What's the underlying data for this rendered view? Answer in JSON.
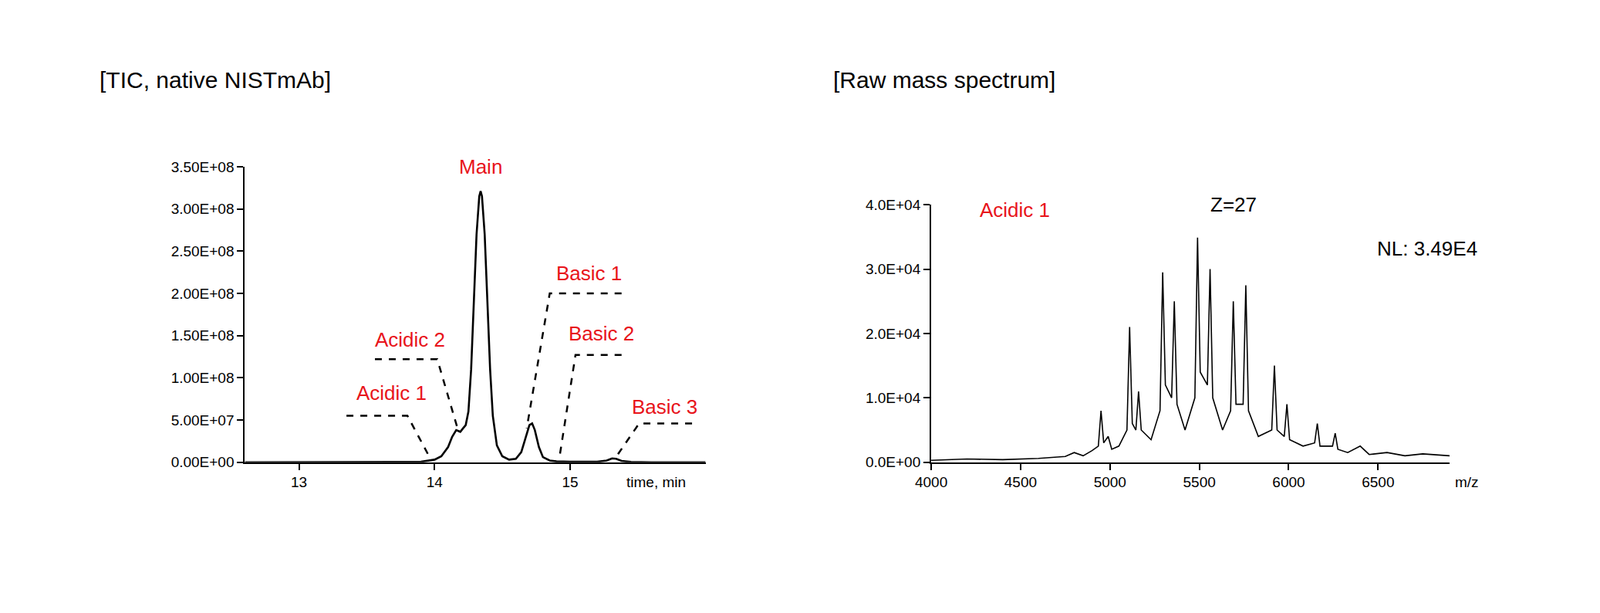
{
  "chart_data": [
    {
      "type": "line",
      "title": "[TIC, native NISTmAb]",
      "xlabel": "time, min",
      "x": [
        12.6,
        13.0,
        13.5,
        13.8,
        13.9,
        14.0,
        14.05,
        14.1,
        14.13,
        14.16,
        14.19,
        14.21,
        14.23,
        14.25,
        14.27,
        14.29,
        14.31,
        14.33,
        14.34,
        14.35,
        14.37,
        14.39,
        14.41,
        14.43,
        14.46,
        14.5,
        14.55,
        14.6,
        14.64,
        14.67,
        14.7,
        14.72,
        14.74,
        14.77,
        14.8,
        14.85,
        14.9,
        15.0,
        15.2,
        15.27,
        15.31,
        15.34,
        15.38,
        15.45,
        15.6,
        16.0
      ],
      "values": [
        0,
        0,
        0,
        200000,
        500000,
        3000000,
        7000000,
        18000000,
        30000000,
        38000000,
        36000000,
        40000000,
        44000000,
        60000000,
        110000000,
        190000000,
        270000000,
        315000000,
        321000000,
        315000000,
        270000000,
        190000000,
        110000000,
        55000000,
        20000000,
        7000000,
        3000000,
        4000000,
        12000000,
        28000000,
        44000000,
        46000000,
        38000000,
        18000000,
        6000000,
        2000000,
        1000000,
        500000,
        500000,
        2000000,
        4500000,
        4000000,
        1500000,
        300000,
        0,
        0
      ],
      "color": "#000000",
      "xlim": [
        12.6,
        16
      ],
      "xticks": [
        13,
        14,
        15
      ],
      "ylim": [
        0,
        350000000
      ],
      "yticks": [
        {
          "value": 0,
          "label": "0.00E+00"
        },
        {
          "value": 50000000,
          "label": "5.00E+07"
        },
        {
          "value": 100000000,
          "label": "1.00E+08"
        },
        {
          "value": 150000000,
          "label": "1.50E+08"
        },
        {
          "value": 200000000,
          "label": "2.00E+08"
        },
        {
          "value": 250000000,
          "label": "2.50E+08"
        },
        {
          "value": 300000000,
          "label": "3.00E+08"
        },
        {
          "value": 350000000,
          "label": "3.50E+08"
        }
      ],
      "grid": false,
      "annotations": [
        {
          "text": "Main",
          "x": 14.34,
          "y": 350000000,
          "color": "#e8141b"
        },
        {
          "text": "Acidic 2",
          "x": 13.82,
          "y": 145000000,
          "color": "#e8141b",
          "leader": [
            [
              13.56,
              122000000
            ],
            [
              14.02,
              122000000
            ],
            [
              14.17,
              40000000
            ]
          ]
        },
        {
          "text": "Acidic 1",
          "x": 13.68,
          "y": 82000000,
          "color": "#e8141b",
          "leader": [
            [
              13.35,
              55000000
            ],
            [
              13.8,
              55000000
            ],
            [
              13.95,
              10000000
            ]
          ]
        },
        {
          "text": "Basic 1",
          "x": 15.14,
          "y": 224000000,
          "color": "#e8141b",
          "leader": [
            [
              15.38,
              200000000
            ],
            [
              14.85,
              200000000
            ],
            [
              14.68,
              40000000
            ]
          ]
        },
        {
          "text": "Basic 2",
          "x": 15.23,
          "y": 152000000,
          "color": "#e8141b",
          "leader": [
            [
              15.38,
              127000000
            ],
            [
              15.04,
              127000000
            ],
            [
              14.92,
              4000000
            ]
          ]
        },
        {
          "text": "Basic 3",
          "x": 15.7,
          "y": 66000000,
          "color": "#e8141b",
          "leader": [
            [
              15.9,
              46000000
            ],
            [
              15.51,
              46000000
            ],
            [
              15.33,
              4000000
            ]
          ]
        }
      ]
    },
    {
      "type": "line",
      "title": "[Raw mass spectrum]",
      "xlabel": "m/z",
      "x": [
        4000,
        4200,
        4400,
        4600,
        4750,
        4800,
        4850,
        4900,
        4935,
        4950,
        4965,
        4990,
        5010,
        5050,
        5095,
        5110,
        5125,
        5145,
        5160,
        5175,
        5230,
        5280,
        5295,
        5310,
        5345,
        5360,
        5375,
        5420,
        5475,
        5490,
        5505,
        5545,
        5560,
        5575,
        5630,
        5675,
        5690,
        5705,
        5745,
        5760,
        5775,
        5830,
        5905,
        5920,
        5935,
        5975,
        5990,
        6005,
        6080,
        6145,
        6160,
        6175,
        6245,
        6260,
        6275,
        6330,
        6400,
        6450,
        6550,
        6650,
        6750,
        6900
      ],
      "values": [
        300,
        500,
        400,
        600,
        900,
        1500,
        1000,
        1800,
        2500,
        8000,
        3000,
        4000,
        2000,
        2500,
        5000,
        21000,
        6000,
        5000,
        11000,
        5000,
        3500,
        8000,
        29500,
        12000,
        10000,
        25000,
        9000,
        5000,
        10000,
        34900,
        14000,
        12000,
        30000,
        10000,
        5000,
        8000,
        25000,
        9000,
        9000,
        27500,
        8000,
        4000,
        5000,
        15000,
        5000,
        4000,
        9000,
        3500,
        2500,
        3000,
        6000,
        2500,
        2500,
        4500,
        2000,
        1500,
        2500,
        1200,
        1500,
        1000,
        1300,
        1000
      ],
      "color": "#000000",
      "xlim": [
        4000,
        6900
      ],
      "xticks": [
        4000,
        4500,
        5000,
        5500,
        6000,
        6500
      ],
      "ylim": [
        0,
        40000
      ],
      "yticks": [
        {
          "value": 0,
          "label": "0.0E+00"
        },
        {
          "value": 10000,
          "label": "1.0E+04"
        },
        {
          "value": 20000,
          "label": "2.0E+04"
        },
        {
          "value": 30000,
          "label": "3.0E+04"
        },
        {
          "value": 40000,
          "label": "4.0E+04"
        }
      ],
      "grid": false,
      "annotations": [
        {
          "text": "Acidic 1",
          "x": 4469,
          "y": 39200,
          "color": "#e8141b"
        },
        {
          "text": "Z=27",
          "x": 5690,
          "y": 40000,
          "color": "#000000"
        },
        {
          "text": "NL: 3.49E4",
          "x": 6775,
          "y": 33200,
          "color": "#000000"
        }
      ]
    }
  ]
}
